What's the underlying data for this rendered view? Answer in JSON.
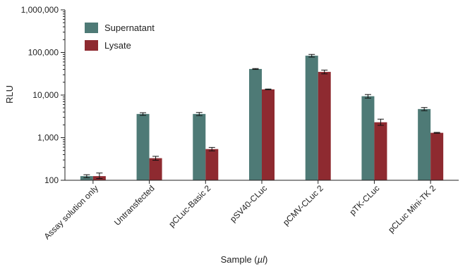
{
  "chart_data": {
    "type": "bar",
    "ylabel": "RLU",
    "xlabel": "Sample (µl)",
    "xlabel_prefix": "Sample (",
    "xlabel_unit": "µl",
    "xlabel_suffix": ")",
    "yscale": "log",
    "ylim": [
      100,
      1000000
    ],
    "yticks": [
      100,
      1000,
      10000,
      100000,
      1000000
    ],
    "ytick_labels": [
      "100",
      "1,000",
      "10,000",
      "100,000",
      "1,000,000"
    ],
    "grid": false,
    "legend_position": "top-left",
    "categories": [
      "Assay solution only",
      "Untransfected",
      "pCLuc-Basic 2",
      "pSV40-CLuc",
      "pCMV-CLuc 2",
      "pTK-CLuc",
      "pCLuc Mini-TK 2"
    ],
    "series": [
      {
        "name": "Supernatant",
        "color": "#4e7a76",
        "values": [
          125,
          3600,
          3600,
          41000,
          84000,
          9400,
          4700
        ],
        "error_low": [
          115,
          3350,
          3300,
          40000,
          78000,
          8500,
          4300
        ],
        "error_high": [
          135,
          3850,
          3900,
          42000,
          90000,
          10300,
          5100
        ]
      },
      {
        "name": "Lysate",
        "color": "#8e2a30",
        "values": [
          125,
          330,
          540,
          13600,
          35000,
          2300,
          1300
        ],
        "error_low": [
          110,
          295,
          490,
          13300,
          31500,
          1950,
          1270
        ],
        "error_high": [
          148,
          365,
          590,
          13900,
          38500,
          2720,
          1330
        ]
      }
    ]
  }
}
